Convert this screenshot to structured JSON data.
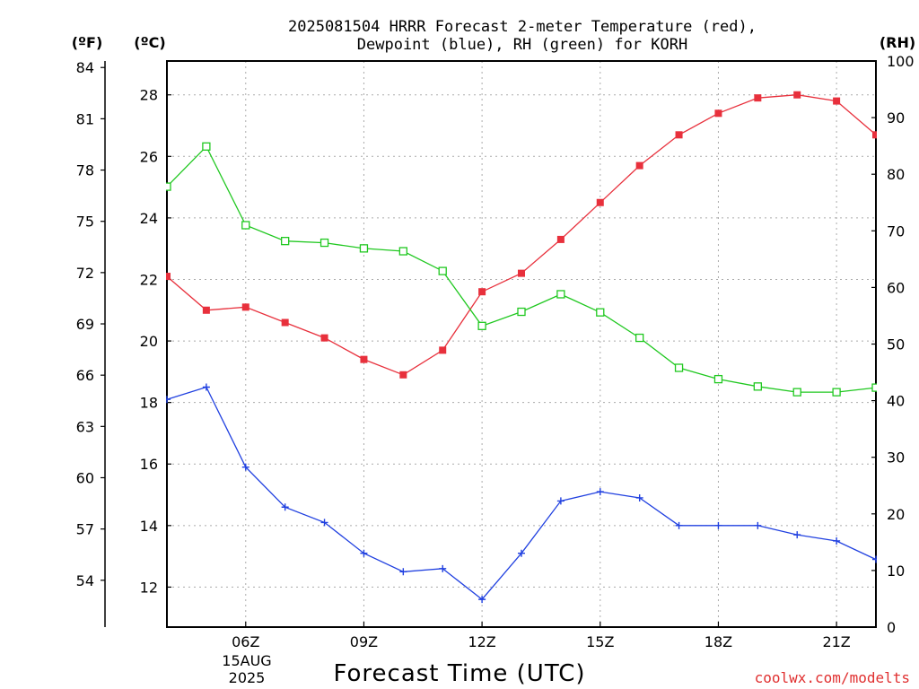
{
  "chart_data": {
    "type": "line",
    "title_line1": "2025081504 HRRR Forecast 2-meter Temperature (red),",
    "title_line2": "Dewpoint (blue), RH (green) for KORH",
    "xlabel": "Forecast Time (UTC)",
    "credit": "coolwx.com/modelts",
    "unit_f": "(ºF)",
    "unit_c": "(ºC)",
    "unit_rh": "(RH)",
    "date_line1": "15AUG",
    "date_line2": "2025",
    "x": [
      4,
      5,
      6,
      7,
      8,
      9,
      10,
      11,
      12,
      13,
      14,
      15,
      16,
      17,
      18,
      19,
      20,
      21,
      22
    ],
    "x_range": [
      4,
      22
    ],
    "x_ticks": [
      {
        "h": 6,
        "label": "06Z"
      },
      {
        "h": 9,
        "label": "09Z"
      },
      {
        "h": 12,
        "label": "12Z"
      },
      {
        "h": 15,
        "label": "15Z"
      },
      {
        "h": 18,
        "label": "18Z"
      },
      {
        "h": 21,
        "label": "21Z"
      }
    ],
    "left_c": {
      "range": [
        10.7,
        29.1
      ],
      "ticks": [
        12,
        14,
        16,
        18,
        20,
        22,
        24,
        26,
        28
      ]
    },
    "left_f": {
      "range": [
        51.26,
        84.38
      ],
      "ticks": [
        54,
        57,
        60,
        63,
        66,
        69,
        72,
        75,
        78,
        81,
        84
      ]
    },
    "right_rh": {
      "range": [
        0,
        100
      ],
      "ticks": [
        0,
        10,
        20,
        30,
        40,
        50,
        60,
        70,
        80,
        90,
        100
      ]
    },
    "grid": true,
    "series": [
      {
        "name": "Temperature",
        "axis": "c",
        "color": "#e8303c",
        "marker": "square-filled",
        "values": [
          22.1,
          21.0,
          21.1,
          20.6,
          20.1,
          19.4,
          18.9,
          19.7,
          21.6,
          22.2,
          23.3,
          24.5,
          25.7,
          26.7,
          27.4,
          27.9,
          28.0,
          27.8,
          26.7
        ]
      },
      {
        "name": "Dewpoint",
        "axis": "c",
        "color": "#2040e0",
        "marker": "plus",
        "values": [
          18.1,
          18.5,
          15.9,
          14.6,
          14.1,
          13.1,
          12.5,
          12.6,
          11.6,
          13.1,
          14.8,
          15.1,
          14.9,
          14.0,
          14.0,
          14.0,
          13.7,
          13.5,
          12.9
        ]
      },
      {
        "name": "RH",
        "axis": "rh",
        "color": "#20c820",
        "marker": "square-open",
        "values": [
          77.8,
          84.9,
          71.0,
          68.2,
          67.9,
          66.9,
          66.4,
          62.9,
          53.2,
          55.7,
          58.8,
          55.6,
          51.1,
          45.8,
          43.8,
          42.5,
          41.5,
          41.5,
          42.3
        ]
      }
    ]
  }
}
